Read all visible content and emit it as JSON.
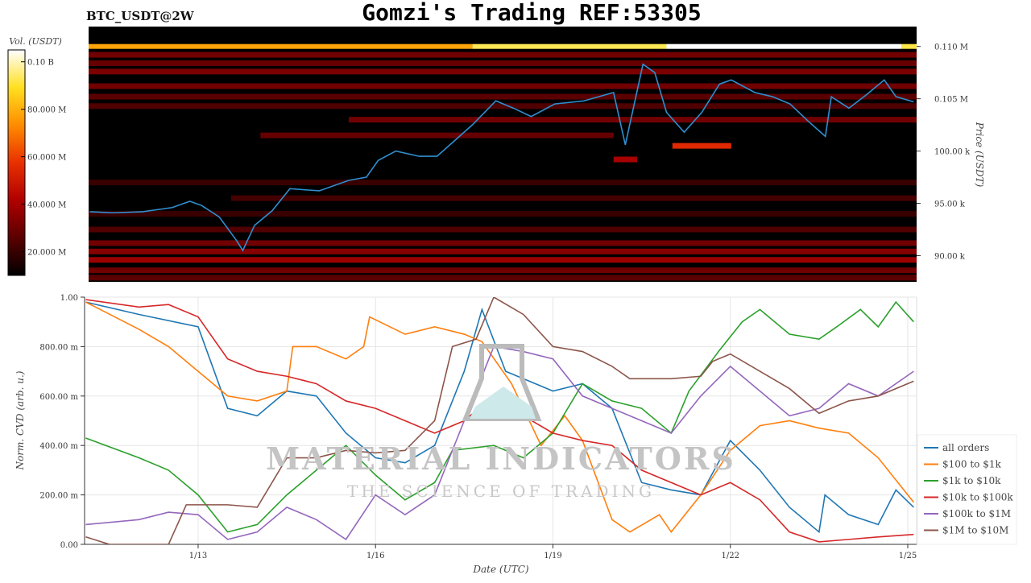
{
  "header": {
    "title": "Gomzi's Trading REF:53305",
    "symbol": "BTC_USDT@2W"
  },
  "watermark": {
    "line1": "MATERIAL INDICATORS",
    "line2": "THE SCIENCE OF TRADING"
  },
  "chart_data": [
    {
      "type": "heatmap",
      "ylabel": "Price (USDT)",
      "yticks": [
        {
          "v": 90,
          "label": "90.00 k"
        },
        {
          "v": 95,
          "label": "95.00 k"
        },
        {
          "v": 100,
          "label": "100.00 k"
        },
        {
          "v": 105,
          "label": "0.105 M"
        },
        {
          "v": 110,
          "label": "0.110 M"
        }
      ],
      "ylim_k": [
        87.5,
        111.9
      ],
      "xlim_day": [
        11.08,
        25.15
      ],
      "colorbar": {
        "label": "Vol. (USDT)",
        "range_M": [
          10,
          105
        ],
        "ticks": [
          {
            "v": 20,
            "label": "20.000 M"
          },
          {
            "v": 40,
            "label": "40.000 M"
          },
          {
            "v": 60,
            "label": "60.000 M"
          },
          {
            "v": 80,
            "label": "80.000 M"
          },
          {
            "v": 100,
            "label": "0.10 B"
          }
        ]
      },
      "colormap": [
        "#000000",
        "#5a0000",
        "#b00000",
        "#e83000",
        "#ff8c00",
        "#ffe020",
        "#ffffff"
      ],
      "heatmap_segments_k": [
        {
          "price": 110,
          "from": 11.08,
          "to": 17.6,
          "vol": 78
        },
        {
          "price": 110,
          "from": 17.6,
          "to": 20.9,
          "vol": 93
        },
        {
          "price": 110,
          "from": 20.9,
          "to": 24.9,
          "vol": 105
        },
        {
          "price": 110,
          "from": 24.9,
          "to": 25.15,
          "vol": 92
        },
        {
          "price": 109.2,
          "from": 11.08,
          "to": 25.15,
          "vol": 30
        },
        {
          "price": 108.4,
          "from": 11.08,
          "to": 25.15,
          "vol": 28
        },
        {
          "price": 107.6,
          "from": 11.08,
          "to": 25.15,
          "vol": 32
        },
        {
          "price": 106.2,
          "from": 11.08,
          "to": 25.15,
          "vol": 30
        },
        {
          "price": 105.2,
          "from": 11.08,
          "to": 25.15,
          "vol": 26
        },
        {
          "price": 104.3,
          "from": 11.08,
          "to": 25.15,
          "vol": 24
        },
        {
          "price": 103.0,
          "from": 15.5,
          "to": 25.15,
          "vol": 30
        },
        {
          "price": 101.5,
          "from": 14.0,
          "to": 20.0,
          "vol": 28
        },
        {
          "price": 100.5,
          "from": 21.0,
          "to": 22.0,
          "vol": 55
        },
        {
          "price": 99.2,
          "from": 20.0,
          "to": 20.4,
          "vol": 40
        },
        {
          "price": 97.0,
          "from": 11.08,
          "to": 25.15,
          "vol": 20
        },
        {
          "price": 95.5,
          "from": 13.5,
          "to": 25.15,
          "vol": 22
        },
        {
          "price": 94.0,
          "from": 11.08,
          "to": 25.15,
          "vol": 20
        },
        {
          "price": 92.5,
          "from": 11.08,
          "to": 25.15,
          "vol": 24
        },
        {
          "price": 91.2,
          "from": 11.08,
          "to": 25.15,
          "vol": 30
        },
        {
          "price": 90.4,
          "from": 11.08,
          "to": 25.15,
          "vol": 34
        },
        {
          "price": 89.6,
          "from": 11.08,
          "to": 25.15,
          "vol": 38
        },
        {
          "price": 88.6,
          "from": 11.08,
          "to": 25.15,
          "vol": 30
        },
        {
          "price": 87.9,
          "from": 11.08,
          "to": 25.15,
          "vol": 26
        }
      ],
      "price_series": {
        "x": [
          11.1,
          11.5,
          12.0,
          12.5,
          12.8,
          13.0,
          13.3,
          13.6,
          13.7,
          13.9,
          14.2,
          14.5,
          15.0,
          15.5,
          15.8,
          16.0,
          16.3,
          16.7,
          17.0,
          17.3,
          17.6,
          18.0,
          18.3,
          18.6,
          19.0,
          19.5,
          20.0,
          20.2,
          20.5,
          20.7,
          20.9,
          21.2,
          21.5,
          21.8,
          22.0,
          22.4,
          22.7,
          23.0,
          23.3,
          23.6,
          23.7,
          24.0,
          24.3,
          24.6,
          24.8,
          25.1
        ],
        "y_k": [
          94.2,
          94.1,
          94.2,
          94.6,
          95.2,
          94.8,
          93.7,
          91.4,
          90.5,
          92.9,
          94.3,
          96.4,
          96.2,
          97.2,
          97.5,
          99.1,
          100.0,
          99.5,
          99.5,
          101.0,
          102.5,
          104.8,
          104.1,
          103.3,
          104.5,
          104.8,
          105.6,
          100.6,
          108.3,
          107.5,
          103.7,
          101.8,
          103.7,
          106.4,
          106.8,
          105.6,
          105.2,
          104.5,
          102.9,
          101.4,
          105.2,
          104.1,
          105.4,
          106.8,
          105.2,
          104.7
        ]
      }
    },
    {
      "type": "line",
      "xlabel": "Date (UTC)",
      "ylabel": "Norm. CVD (arb. u.)",
      "ylim": [
        0,
        1
      ],
      "xticks": [
        {
          "v": 13,
          "label": "1/13"
        },
        {
          "v": 16,
          "label": "1/16"
        },
        {
          "v": 19,
          "label": "1/19"
        },
        {
          "v": 22,
          "label": "1/22"
        },
        {
          "v": 25,
          "label": "1/25"
        }
      ],
      "yticks": [
        {
          "v": 0,
          "label": "0.00"
        },
        {
          "v": 0.2,
          "label": "200.00 m"
        },
        {
          "v": 0.4,
          "label": "400.00 m"
        },
        {
          "v": 0.6,
          "label": "600.00 m"
        },
        {
          "v": 0.8,
          "label": "800.00 m"
        },
        {
          "v": 1,
          "label": "1.00"
        }
      ],
      "grid": true,
      "legend": "right",
      "series": [
        {
          "name": "all orders",
          "color": "#1f77b4",
          "x": [
            11.1,
            12,
            13,
            13.5,
            14,
            14.5,
            15,
            15.5,
            16,
            16.5,
            17,
            17.5,
            17.8,
            18.2,
            19,
            19.5,
            20,
            20.5,
            21,
            21.5,
            22,
            22.5,
            23,
            23.5,
            23.6,
            24,
            24.5,
            24.8,
            25.1
          ],
          "y": [
            0.98,
            0.93,
            0.88,
            0.55,
            0.52,
            0.62,
            0.6,
            0.45,
            0.35,
            0.33,
            0.4,
            0.7,
            0.95,
            0.7,
            0.62,
            0.65,
            0.55,
            0.25,
            0.22,
            0.2,
            0.42,
            0.3,
            0.15,
            0.05,
            0.2,
            0.12,
            0.08,
            0.22,
            0.15
          ]
        },
        {
          "name": "$100 to $1k",
          "color": "#ff7f0e",
          "x": [
            11.1,
            12,
            12.5,
            13,
            13.5,
            14,
            14.5,
            14.6,
            15,
            15.5,
            15.8,
            15.9,
            16.5,
            17,
            17.5,
            17.8,
            18.3,
            18.8,
            19.2,
            19.5,
            20,
            20.3,
            20.8,
            21,
            21.5,
            22,
            22.5,
            23,
            23.5,
            24,
            24.5,
            25.1
          ],
          "y": [
            0.98,
            0.87,
            0.8,
            0.7,
            0.6,
            0.58,
            0.62,
            0.8,
            0.8,
            0.75,
            0.8,
            0.92,
            0.85,
            0.88,
            0.85,
            0.82,
            0.65,
            0.4,
            0.52,
            0.42,
            0.1,
            0.05,
            0.12,
            0.05,
            0.2,
            0.38,
            0.48,
            0.5,
            0.47,
            0.45,
            0.35,
            0.17
          ]
        },
        {
          "name": "$1k to $10k",
          "color": "#2ca02c",
          "x": [
            11.1,
            12,
            12.5,
            13,
            13.5,
            14,
            14.5,
            15,
            15.5,
            16,
            16.5,
            17,
            17.3,
            18,
            18.5,
            19,
            19.5,
            20,
            20.5,
            21,
            21.3,
            21.8,
            22.2,
            22.5,
            23,
            23.5,
            23.8,
            24.2,
            24.5,
            24.8,
            25.1
          ],
          "y": [
            0.43,
            0.35,
            0.3,
            0.2,
            0.05,
            0.08,
            0.2,
            0.3,
            0.4,
            0.28,
            0.18,
            0.25,
            0.38,
            0.4,
            0.35,
            0.45,
            0.65,
            0.58,
            0.55,
            0.45,
            0.62,
            0.78,
            0.9,
            0.95,
            0.85,
            0.83,
            0.88,
            0.95,
            0.88,
            0.98,
            0.9
          ]
        },
        {
          "name": "$10k to $100k",
          "color": "#d62728",
          "x": [
            11.1,
            12,
            12.5,
            13,
            13.5,
            14,
            14.5,
            15,
            15.5,
            16,
            16.5,
            17,
            17.5,
            18,
            18.5,
            19,
            19.5,
            20,
            20.5,
            21,
            21.5,
            22,
            22.5,
            23,
            23.5,
            24,
            24.5,
            25.1
          ],
          "y": [
            0.99,
            0.96,
            0.97,
            0.92,
            0.75,
            0.7,
            0.68,
            0.65,
            0.58,
            0.55,
            0.5,
            0.45,
            0.5,
            0.6,
            0.52,
            0.45,
            0.42,
            0.4,
            0.3,
            0.25,
            0.2,
            0.25,
            0.18,
            0.05,
            0.01,
            0.02,
            0.03,
            0.04
          ]
        },
        {
          "name": "$100k to $1M",
          "color": "#9467bd",
          "x": [
            11.1,
            12,
            12.5,
            13,
            13.5,
            14,
            14.5,
            15,
            15.5,
            16,
            16.5,
            17,
            17.5,
            18,
            18.5,
            19,
            19.5,
            20,
            20.5,
            21,
            21.5,
            22,
            22.5,
            23,
            23.5,
            24,
            24.5,
            25.1
          ],
          "y": [
            0.08,
            0.1,
            0.13,
            0.12,
            0.02,
            0.05,
            0.15,
            0.1,
            0.02,
            0.2,
            0.12,
            0.2,
            0.5,
            0.8,
            0.78,
            0.75,
            0.6,
            0.55,
            0.5,
            0.45,
            0.6,
            0.72,
            0.62,
            0.52,
            0.55,
            0.65,
            0.6,
            0.7
          ]
        },
        {
          "name": "$1M to $10M",
          "color": "#8c564b",
          "x": [
            11.1,
            11.5,
            12.5,
            12.8,
            13.5,
            14,
            14.5,
            15,
            15.5,
            16,
            16.5,
            17,
            17.3,
            17.7,
            18,
            18.5,
            19,
            19.5,
            20,
            20.3,
            21,
            21.5,
            21.7,
            22,
            22.5,
            23,
            23.5,
            24,
            24.5,
            25.1
          ],
          "y": [
            0.03,
            0.0,
            0.0,
            0.16,
            0.16,
            0.15,
            0.35,
            0.35,
            0.38,
            0.37,
            0.38,
            0.5,
            0.8,
            0.83,
            1.0,
            0.93,
            0.8,
            0.78,
            0.72,
            0.67,
            0.67,
            0.68,
            0.74,
            0.77,
            0.7,
            0.63,
            0.53,
            0.58,
            0.6,
            0.66
          ]
        }
      ]
    }
  ]
}
